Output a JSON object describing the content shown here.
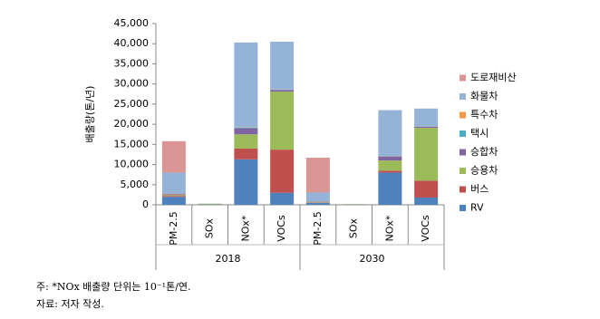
{
  "chart_data": {
    "type": "stacked-bar",
    "y_label": "배출량(톤/년)",
    "categories": [
      "PM-2.5",
      "SOx",
      "NOx*",
      "VOCs",
      "PM-2.5",
      "SOx",
      "NOx*",
      "VOCs"
    ],
    "groups": [
      "2018",
      "2030"
    ],
    "series": [
      {
        "name": "RV",
        "color": "#4f81bd",
        "values": [
          2000,
          50,
          11300,
          3000,
          500,
          40,
          8000,
          1800
        ]
      },
      {
        "name": "버스",
        "color": "#c0504d",
        "values": [
          200,
          20,
          2700,
          10700,
          100,
          10,
          500,
          4200
        ]
      },
      {
        "name": "승용차",
        "color": "#9bbb59",
        "values": [
          200,
          150,
          3500,
          14400,
          100,
          100,
          2500,
          13100
        ]
      },
      {
        "name": "승합차",
        "color": "#8064a2",
        "values": [
          200,
          20,
          1500,
          400,
          100,
          10,
          1000,
          300
        ]
      },
      {
        "name": "택시",
        "color": "#4bacc6",
        "values": [
          0,
          0,
          200,
          100,
          0,
          0,
          100,
          50
        ]
      },
      {
        "name": "특수차",
        "color": "#f79646",
        "values": [
          100,
          0,
          100,
          50,
          50,
          0,
          50,
          50
        ]
      },
      {
        "name": "화물차",
        "color": "#95b3d7",
        "values": [
          5300,
          60,
          21000,
          11850,
          2200,
          40,
          11350,
          4400
        ]
      },
      {
        "name": "도로재비산",
        "color": "#d99694",
        "values": [
          7800,
          0,
          0,
          0,
          8650,
          0,
          0,
          0
        ]
      }
    ],
    "ylim": [
      0,
      45000
    ],
    "yticks": [
      0,
      {
        "value": 5000,
        "label": "5,000"
      },
      {
        "value": 10000,
        "label": "10,000"
      },
      {
        "value": 15000,
        "label": "15,000"
      },
      {
        "value": 20000,
        "label": "20,000"
      },
      {
        "value": 25000,
        "label": "25,000"
      },
      {
        "value": 30000,
        "label": "30,000"
      },
      {
        "value": 35000,
        "label": "35,000"
      },
      {
        "value": 40000,
        "label": "40,000"
      },
      {
        "value": 45000,
        "label": "45,000"
      }
    ],
    "notes": [
      "주: *NOx 배출량 단위는 10⁻¹톤/연.",
      "자료: 저자 작성."
    ]
  }
}
